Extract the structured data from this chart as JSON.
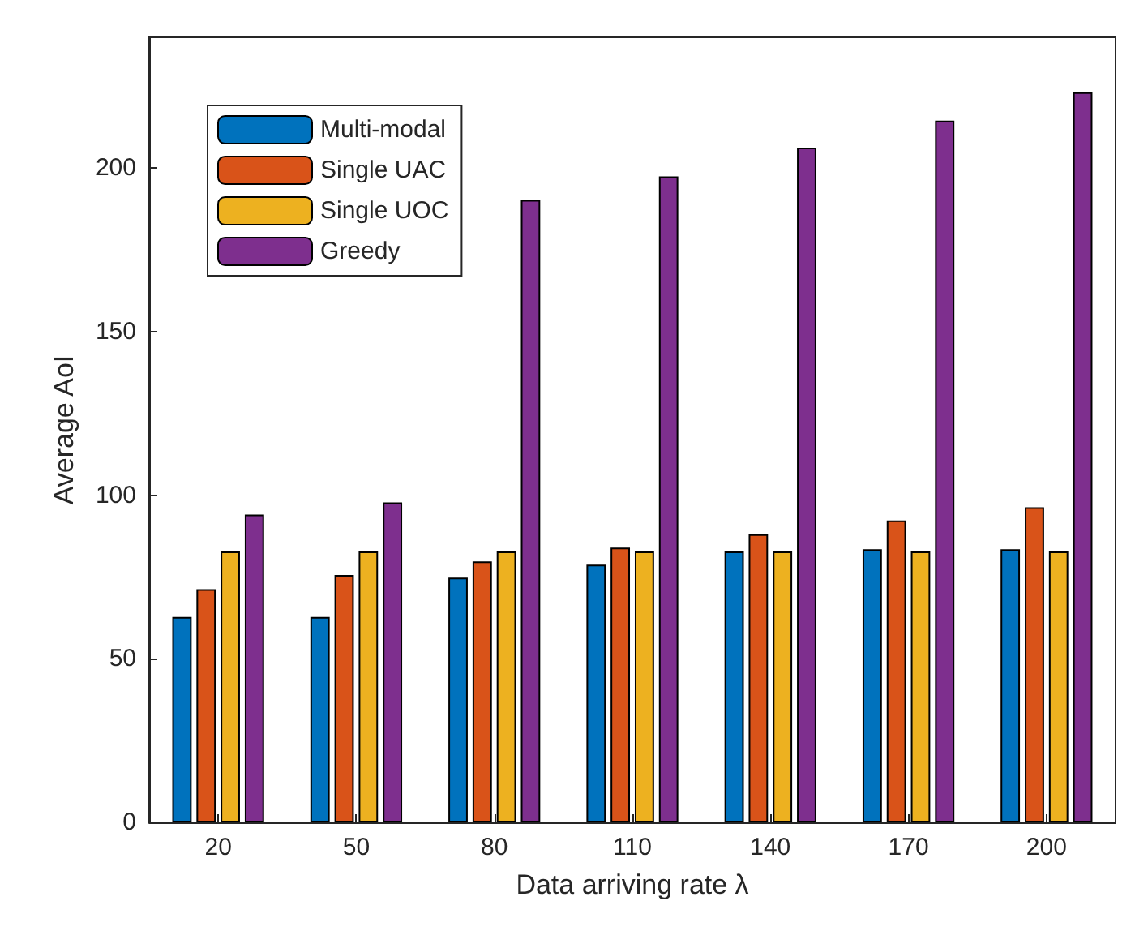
{
  "chart_data": {
    "type": "bar",
    "xlabel": "Data arriving rate λ",
    "ylabel": "Average AoI",
    "categories": [
      "20",
      "50",
      "80",
      "110",
      "140",
      "170",
      "200"
    ],
    "series": [
      {
        "name": "Multi-modal",
        "color": "#0072bd",
        "values": [
          62.8,
          62.8,
          74.8,
          78.8,
          82.8,
          83.5,
          83.5
        ]
      },
      {
        "name": "Single UAC",
        "color": "#d95319",
        "values": [
          71.3,
          75.6,
          79.8,
          84,
          88.1,
          92.3,
          96.3
        ]
      },
      {
        "name": "Single UOC",
        "color": "#edb120",
        "values": [
          82.8,
          82.8,
          82.8,
          82.8,
          82.8,
          82.8,
          82.8
        ]
      },
      {
        "name": "Greedy",
        "color": "#7e2f8e",
        "values": [
          94.1,
          97.8,
          190.3,
          197.5,
          206.3,
          214.5,
          223.2
        ]
      }
    ],
    "ylim": [
      0,
      240
    ],
    "yticks": [
      0,
      50,
      100,
      150,
      200
    ],
    "grid": false,
    "legend": "top left"
  }
}
